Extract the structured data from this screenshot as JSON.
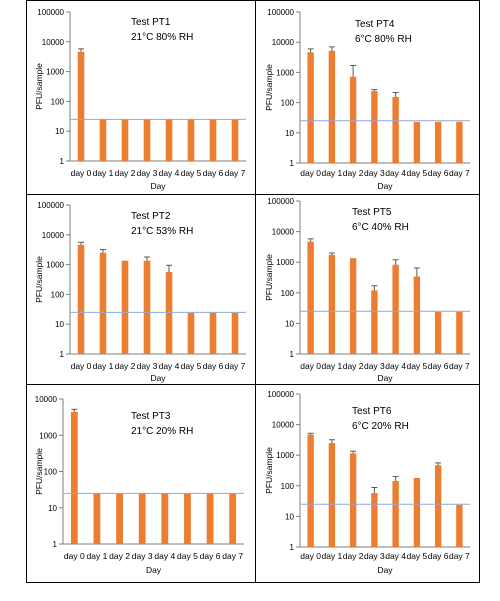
{
  "chart_data": [
    {
      "type": "bar",
      "title": "Test PT1",
      "subtitle": "21°C 80% RH",
      "xlabel": "Day",
      "ylabel": "PFU/sample",
      "yscale": "log",
      "ylim": [
        1,
        100000
      ],
      "y_ticks": [
        "1",
        "10",
        "100",
        "1000",
        "10000",
        "100000"
      ],
      "categories": [
        "day 0",
        "day 1",
        "day 2",
        "day 3",
        "day 4",
        "day 5",
        "day 6",
        "day 7"
      ],
      "values": [
        4600,
        25,
        25,
        25,
        25,
        25,
        25,
        25
      ],
      "error_upper": [
        5800,
        null,
        null,
        null,
        null,
        null,
        null,
        null
      ],
      "reference_line": 25,
      "grid": false
    },
    {
      "type": "bar",
      "title": "Test PT4",
      "subtitle": "6°C 80% RH",
      "xlabel": "Day",
      "ylabel": "PFU/sample",
      "yscale": "log",
      "ylim": [
        1,
        100000
      ],
      "y_ticks": [
        "1",
        "10",
        "100",
        "1000",
        "10000",
        "100000"
      ],
      "categories": [
        "day 0",
        "day 1",
        "day 2",
        "day 3",
        "day 4",
        "day 5",
        "day 6",
        "day 7"
      ],
      "values": [
        4600,
        5200,
        720,
        240,
        155,
        23,
        23,
        23
      ],
      "error_upper": [
        6000,
        7000,
        1700,
        270,
        215,
        null,
        null,
        null
      ],
      "reference_line": 25,
      "grid": false
    },
    {
      "type": "bar",
      "title": "Test PT2",
      "subtitle": "21°C 53% RH",
      "xlabel": "Day",
      "ylabel": "PFU/sample",
      "yscale": "log",
      "ylim": [
        1,
        100000
      ],
      "y_ticks": [
        "1",
        "10",
        "100",
        "1000",
        "10000",
        "100000"
      ],
      "categories": [
        "day 0",
        "day 1",
        "day 2",
        "day 3",
        "day 4",
        "day 5",
        "day 6",
        "day 7"
      ],
      "values": [
        4600,
        2500,
        1350,
        1350,
        560,
        24,
        24,
        24
      ],
      "error_upper": [
        5600,
        3200,
        null,
        1800,
        950,
        null,
        null,
        null
      ],
      "reference_line": 25,
      "grid": false
    },
    {
      "type": "bar",
      "title": "Test PT5",
      "subtitle": "6°C 40% RH",
      "xlabel": "Day",
      "ylabel": "PFU/sample",
      "yscale": "log",
      "ylim": [
        1,
        100000
      ],
      "y_ticks": [
        "1",
        "10",
        "100",
        "1000",
        "10000",
        "100000"
      ],
      "categories": [
        "day 0",
        "day 1",
        "day 2",
        "day 3",
        "day 4",
        "day 5",
        "day 6",
        "day 7"
      ],
      "values": [
        4700,
        1750,
        1350,
        120,
        830,
        340,
        24,
        24
      ],
      "error_upper": [
        5800,
        2000,
        null,
        170,
        1200,
        650,
        null,
        null
      ],
      "reference_line": 25,
      "grid": false
    },
    {
      "type": "bar",
      "title": "Test PT3",
      "subtitle": "21°C 20% RH",
      "xlabel": "Day",
      "ylabel": "PFU/sample",
      "yscale": "log",
      "ylim": [
        1,
        10000
      ],
      "y_ticks": [
        "1",
        "10",
        "100",
        "1000",
        "10000"
      ],
      "categories": [
        "day 0",
        "day 1",
        "day 2",
        "day 3",
        "day 4",
        "day 5",
        "day 6",
        "day 7"
      ],
      "values": [
        4400,
        25,
        25,
        25,
        25,
        25,
        25,
        25
      ],
      "error_upper": [
        5200,
        null,
        null,
        null,
        null,
        null,
        null,
        null
      ],
      "reference_line": 25,
      "grid": false
    },
    {
      "type": "bar",
      "title": "Test PT6",
      "subtitle": "6°C 20% RH",
      "xlabel": "Day",
      "ylabel": "PFU/sample",
      "yscale": "log",
      "ylim": [
        1,
        100000
      ],
      "y_ticks": [
        "1",
        "10",
        "100",
        "1000",
        "10000",
        "100000"
      ],
      "categories": [
        "day 0",
        "day 1",
        "day 2",
        "day 3",
        "day 4",
        "day 5",
        "day 6",
        "day 7"
      ],
      "values": [
        4700,
        2500,
        1150,
        58,
        145,
        180,
        470,
        24
      ],
      "error_upper": [
        5200,
        3200,
        1350,
        88,
        200,
        null,
        560,
        null
      ],
      "reference_line": 25,
      "grid": false
    }
  ],
  "style": {
    "bar_color": "#ED7D31",
    "reference_line_color": "#8EA9DB",
    "axis_color": "#7F7F7F",
    "text_color": "#000000"
  }
}
